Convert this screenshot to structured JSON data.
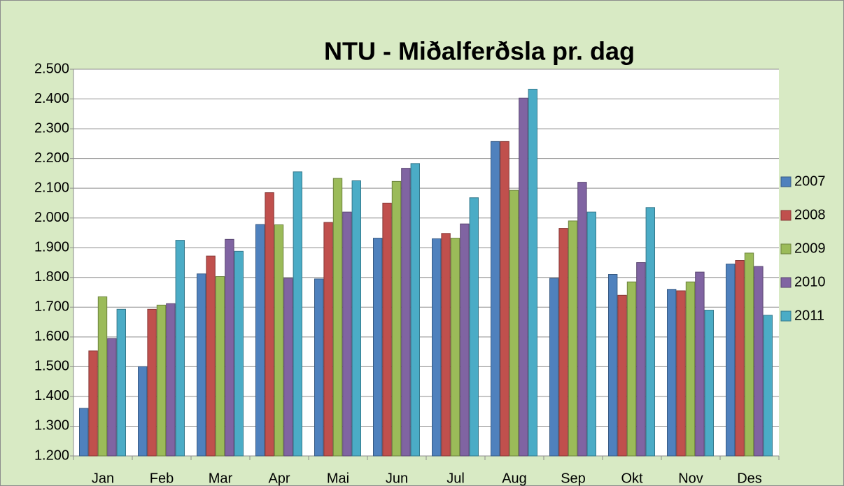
{
  "chart_data": {
    "type": "bar",
    "title": "NTU - Miðalferðsla pr. dag",
    "categories": [
      "Jan",
      "Feb",
      "Mar",
      "Apr",
      "Mai",
      "Jun",
      "Jul",
      "Aug",
      "Sep",
      "Okt",
      "Nov",
      "Des"
    ],
    "series": [
      {
        "name": "2007",
        "color": "#4f81bd",
        "values": [
          1360,
          1500,
          1812,
          1978,
          1795,
          1932,
          1930,
          2257,
          1797,
          1810,
          1760,
          1845
        ]
      },
      {
        "name": "2008",
        "color": "#c0504d",
        "values": [
          1553,
          1693,
          1872,
          2085,
          1985,
          2050,
          1948,
          2257,
          1965,
          1740,
          1755,
          1857
        ]
      },
      {
        "name": "2009",
        "color": "#9bbb59",
        "values": [
          1735,
          1707,
          1803,
          1977,
          2133,
          2123,
          1932,
          2093,
          1990,
          1785,
          1785,
          1882
        ]
      },
      {
        "name": "2010",
        "color": "#8064a2",
        "values": [
          1595,
          1712,
          1928,
          1797,
          2020,
          2167,
          1980,
          2403,
          2120,
          1850,
          1818,
          1837
        ]
      },
      {
        "name": "2011",
        "color": "#4bacc6",
        "values": [
          1693,
          1925,
          1888,
          2155,
          2125,
          2183,
          2068,
          2433,
          2020,
          2035,
          1690,
          1673
        ]
      }
    ],
    "ylim": [
      1200,
      2500
    ],
    "yticks": [
      {
        "value": 1200,
        "label": "1.200"
      },
      {
        "value": 1300,
        "label": "1.300"
      },
      {
        "value": 1400,
        "label": "1.400"
      },
      {
        "value": 1500,
        "label": "1.500"
      },
      {
        "value": 1600,
        "label": "1.600"
      },
      {
        "value": 1700,
        "label": "1.700"
      },
      {
        "value": 1800,
        "label": "1.800"
      },
      {
        "value": 1900,
        "label": "1.900"
      },
      {
        "value": 2000,
        "label": "2.000"
      },
      {
        "value": 2100,
        "label": "2.100"
      },
      {
        "value": 2200,
        "label": "2.200"
      },
      {
        "value": 2300,
        "label": "2.300"
      },
      {
        "value": 2400,
        "label": "2.400"
      },
      {
        "value": 2500,
        "label": "2.500"
      }
    ],
    "grid": true,
    "legend": "right"
  }
}
